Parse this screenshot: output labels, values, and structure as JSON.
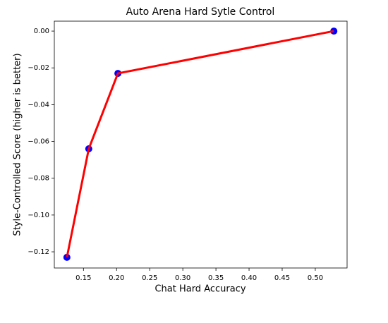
{
  "chart_data": {
    "type": "line",
    "title": "Auto Arena Hard Sytle Control",
    "xlabel": "Chat Hard Accuracy",
    "ylabel": "Style-Controlled Score (higher is better)",
    "x": [
      0.125,
      0.158,
      0.202,
      0.528
    ],
    "series": [
      {
        "color": "#ff0000",
        "marker_color": "#0000ff",
        "values": [
          -0.123,
          -0.064,
          -0.023,
          0.0
        ]
      }
    ],
    "xlim": [
      0.106,
      0.548
    ],
    "ylim": [
      -0.1288,
      0.0054
    ],
    "xticks": [
      0.15,
      {
        "value": 0.2,
        "label": "0.20"
      },
      0.25,
      {
        "value": 0.3,
        "label": "0.30"
      },
      0.35,
      {
        "value": 0.4,
        "label": "0.40"
      },
      0.45,
      {
        "value": 0.5,
        "label": "0.50"
      }
    ],
    "yticks": [
      {
        "value": -0.12,
        "label": "−0.12"
      },
      {
        "value": -0.1,
        "label": "−0.10"
      },
      {
        "value": -0.08,
        "label": "−0.08"
      },
      {
        "value": -0.06,
        "label": "−0.06"
      },
      {
        "value": -0.04,
        "label": "−0.04"
      },
      {
        "value": -0.02,
        "label": "−0.02"
      },
      {
        "value": 0,
        "label": "0.00"
      }
    ],
    "grid": false
  }
}
